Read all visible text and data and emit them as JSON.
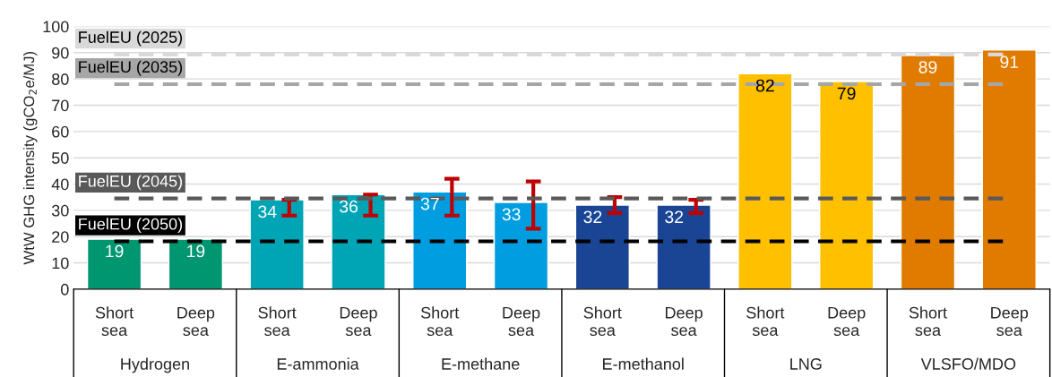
{
  "chart_data": {
    "type": "bar",
    "ylabel": "WtW GHG intensity (gCO$_{2}$e/MJ)",
    "categories": [
      "Short sea",
      "Deep sea",
      "Short sea",
      "Deep sea",
      "Short sea",
      "Deep sea",
      "Short sea",
      "Deep sea",
      "Short sea",
      "Deep sea",
      "Short sea",
      "Deep sea"
    ],
    "values": [
      19,
      19,
      34,
      36,
      37,
      33,
      32,
      32,
      82,
      79,
      89,
      91
    ],
    "colors": [
      "#009670",
      "#009670",
      "#00a5b5",
      "#00a5b5",
      "#009ee0",
      "#009ee0",
      "#1a4595",
      "#1a4595",
      "#ffc000",
      "#ffc000",
      "#e07b00",
      "#e07b00"
    ],
    "errors": [
      null,
      null,
      [
        28,
        34
      ],
      [
        28,
        36
      ],
      [
        28,
        42
      ],
      [
        23,
        41
      ],
      [
        29,
        35
      ],
      [
        29,
        34
      ],
      null,
      null,
      null,
      null
    ],
    "data_labels": true,
    "annotations": [
      "Hydrogen",
      "E-ammonia",
      "E-methane",
      "E-methanol",
      "LNG",
      "VLSFO/MDO"
    ],
    "ref_lines": [
      {
        "axis": "y",
        "value": 89.3,
        "label": "FuelEU (2025)",
        "color": "#d9d9d9",
        "line_style": "dashed"
      },
      {
        "axis": "y",
        "value": 78,
        "label": "FuelEU (2035)",
        "color": "#a6a6a6",
        "line_style": "dashed"
      },
      {
        "axis": "y",
        "value": 34.5,
        "label": "FuelEU (2045)",
        "color": "#595959",
        "line_style": "dashed"
      },
      {
        "axis": "y",
        "value": 18.2,
        "label": "FuelEU (2050)",
        "color": "#000000",
        "line_style": "dashed"
      }
    ],
    "ylim": [
      0,
      100
    ],
    "yticks": [
      0,
      10,
      20,
      30,
      40,
      50,
      60,
      70,
      80,
      90,
      100
    ],
    "grid": "y",
    "legend": false
  }
}
